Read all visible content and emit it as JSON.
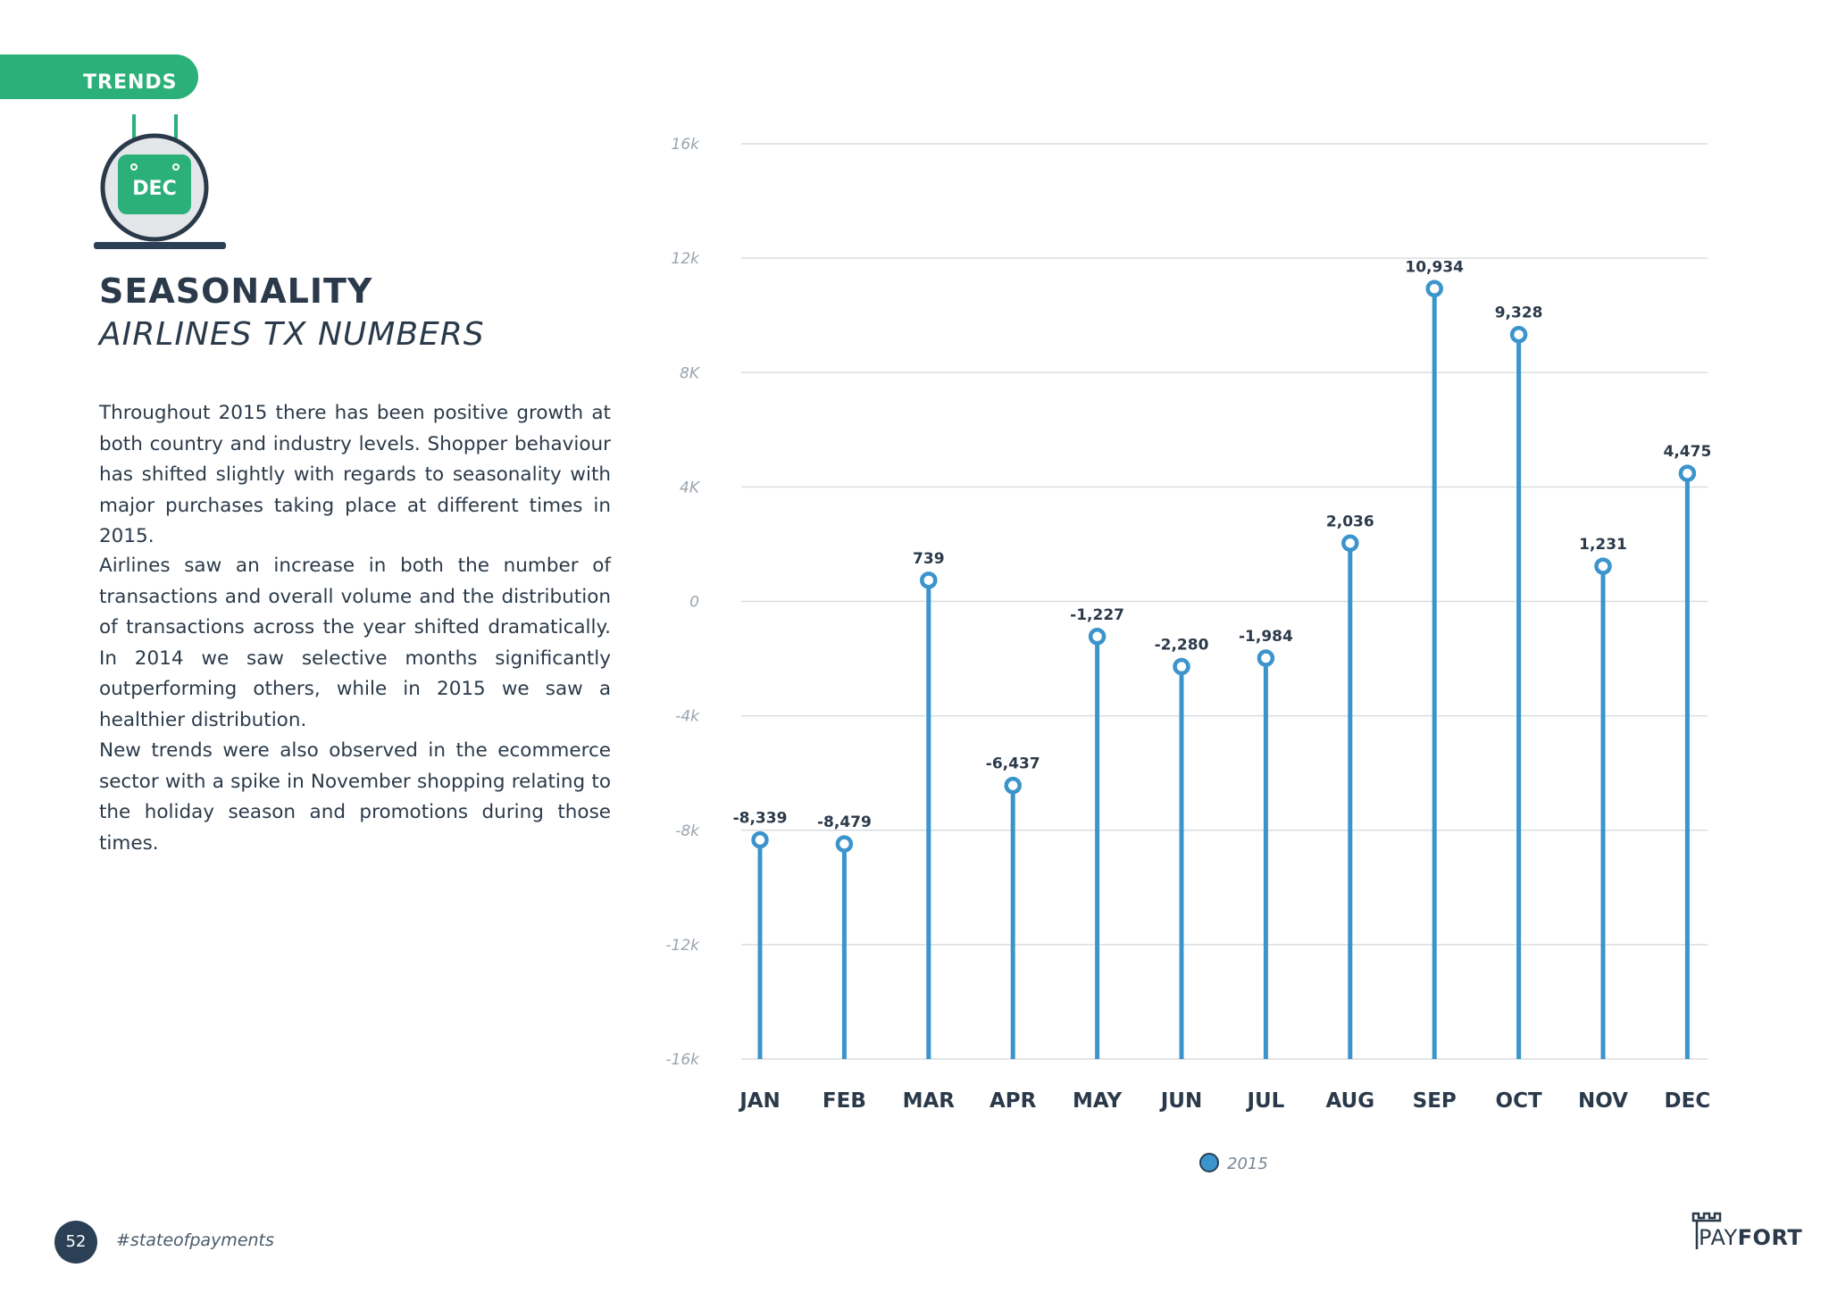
{
  "section_tab": {
    "label": "TRENDS"
  },
  "calendar_icon": {
    "month": "DEC"
  },
  "heading": {
    "title": "SEASONALITY",
    "subtitle": "AIRLINES TX NUMBERS"
  },
  "body": {
    "paragraphs": [
      "Throughout 2015 there has been positive growth at both country and industry levels. Shopper behaviour has shifted slightly with regards to seasonality with major purchases taking place at different times in 2015.",
      "Airlines saw an increase in both the number of transactions and overall volume and the distribution of transactions across the year shifted dramatically. In 2014 we saw selective months significantly outperforming others, while in 2015 we saw a healthier distribution.",
      "New trends were also observed in the ecommerce sector with a spike in November shopping relating to the holiday season and promotions during those times."
    ]
  },
  "chart_data": {
    "type": "line",
    "categories": [
      "JAN",
      "FEB",
      "MAR",
      "APR",
      "MAY",
      "JUN",
      "JUL",
      "AUG",
      "SEP",
      "OCT",
      "NOV",
      "DEC"
    ],
    "series": [
      {
        "name": "2015",
        "values": [
          -8339,
          -8479,
          739,
          -6437,
          -1227,
          -2280,
          -1984,
          2036,
          10934,
          9328,
          1231,
          4475
        ],
        "color": "#3b94cc"
      }
    ],
    "data_labels": [
      "-8,339",
      "-8,479",
      "739",
      "-6,437",
      "-1,227",
      "-2,280",
      "-1,984",
      "2,036",
      "10,934",
      "9,328",
      "1,231",
      "4,475"
    ],
    "y_ticks": [
      16000,
      12000,
      8000,
      4000,
      0,
      -4000,
      -8000,
      -12000,
      -16000
    ],
    "y_tick_labels": [
      "16k",
      "12k",
      "8K",
      "4K",
      "0",
      "-4k",
      "-8k",
      "-12k",
      "-16k"
    ],
    "ylim": [
      -16000,
      16000
    ],
    "grid": true,
    "legend_position": "bottom-center",
    "title": "",
    "xlabel": "",
    "ylabel": ""
  },
  "footer": {
    "page_number": "52",
    "hashtag": "#stateofpayments",
    "brand_light": "PAY",
    "brand_bold": "FORT"
  },
  "colors": {
    "accent_green": "#2bb07a",
    "series_blue": "#3b94cc",
    "dark_navy": "#2b3f55"
  }
}
